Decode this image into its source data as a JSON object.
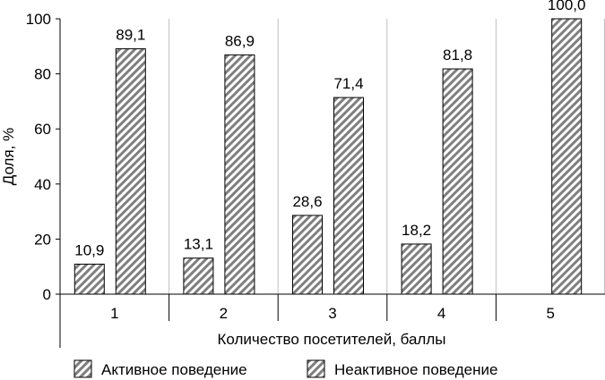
{
  "chart_data": {
    "type": "bar",
    "categories": [
      "1",
      "2",
      "3",
      "4",
      "5"
    ],
    "series": [
      {
        "name": "Активное поведение",
        "values": [
          10.9,
          13.1,
          28.6,
          18.2,
          0
        ],
        "labels": [
          "10,9",
          "13,1",
          "28,6",
          "18,2",
          ""
        ]
      },
      {
        "name": "Неактивное поведение",
        "values": [
          89.1,
          86.9,
          71.4,
          81.8,
          100.0
        ],
        "labels": [
          "89,1",
          "86,9",
          "71,4",
          "81,8",
          "100,0"
        ]
      }
    ],
    "ylim": [
      0,
      100
    ],
    "yticks": [
      "0",
      "20",
      "40",
      "60",
      "80",
      "100"
    ],
    "xlabel": "Количество посетителей, баллы",
    "ylabel": "Доля, %",
    "grid": "vertical",
    "legend": "bottom"
  }
}
